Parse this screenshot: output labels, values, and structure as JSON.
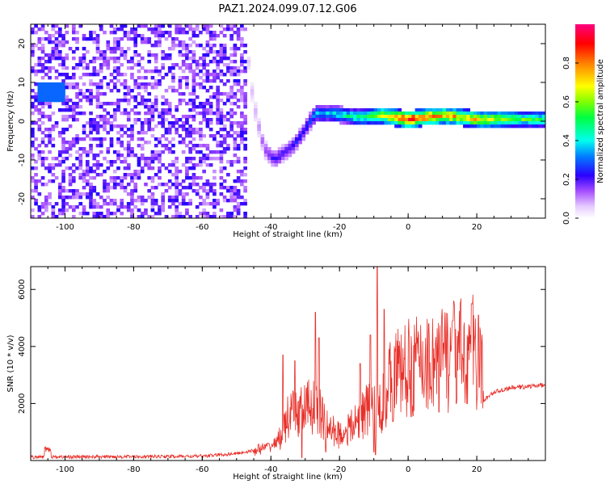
{
  "title": "PAZ1.2024.099.07.12.G06",
  "chart_data": [
    {
      "type": "heatmap",
      "xlabel": "Height of straight line (km)",
      "ylabel": "Frequency (Hz)",
      "xlim": [
        -110,
        40
      ],
      "ylim": [
        -25,
        25
      ],
      "xticks": [
        -100,
        -80,
        -60,
        -40,
        -20,
        0,
        20
      ],
      "xtick_labels": [
        "-100",
        "-80",
        "-60",
        "-40",
        "-20",
        "0",
        "20"
      ],
      "yticks": [
        -20,
        -10,
        0,
        10,
        20
      ],
      "ytick_labels": [
        "-20",
        "-10",
        "0",
        "10",
        "20"
      ],
      "colorbar": {
        "label": "Normalized spectral amplitude",
        "range": [
          0,
          1
        ],
        "ticks": [
          0.0,
          0.2,
          0.4,
          0.6,
          0.8
        ],
        "tick_labels": [
          "0.0",
          "0.2",
          "0.4",
          "0.6",
          "0.8"
        ]
      },
      "features": {
        "noise_region_x": [
          -110,
          -47
        ],
        "noise_amplitude": 0.15,
        "ridge": [
          {
            "x": -107,
            "y": 7,
            "amp": 0.3
          },
          {
            "x": -103,
            "y": 8,
            "amp": 0.35
          },
          {
            "x": -47,
            "y": 20,
            "amp": 0.05
          },
          {
            "x": -46,
            "y": 10,
            "amp": 0.08
          },
          {
            "x": -44,
            "y": 0,
            "amp": 0.1
          },
          {
            "x": -42,
            "y": -7,
            "amp": 0.15
          },
          {
            "x": -39,
            "y": -10,
            "amp": 0.25
          },
          {
            "x": -36,
            "y": -8,
            "amp": 0.2
          },
          {
            "x": -33,
            "y": -6,
            "amp": 0.25
          },
          {
            "x": -30,
            "y": -2,
            "amp": 0.25
          },
          {
            "x": -27,
            "y": 2,
            "amp": 0.35
          },
          {
            "x": -22,
            "y": 2,
            "amp": 0.4
          },
          {
            "x": -15,
            "y": 1,
            "amp": 0.5
          },
          {
            "x": -8,
            "y": 1.5,
            "amp": 0.65
          },
          {
            "x": 0,
            "y": 0.5,
            "amp": 0.95
          },
          {
            "x": 10,
            "y": 1.5,
            "amp": 0.8
          },
          {
            "x": 20,
            "y": 0.5,
            "amp": 0.75
          },
          {
            "x": 30,
            "y": 0.5,
            "amp": 0.6
          },
          {
            "x": 40,
            "y": 0.5,
            "amp": 0.5
          }
        ]
      }
    },
    {
      "type": "line",
      "xlabel": "Height of straight line (km)",
      "ylabel": "SNR (10 * v/v)",
      "xlim": [
        -110,
        40
      ],
      "ylim": [
        0,
        6800
      ],
      "xticks": [
        -100,
        -80,
        -60,
        -40,
        -20,
        0,
        20
      ],
      "xtick_labels": [
        "-100",
        "-80",
        "-60",
        "-40",
        "-20",
        "0",
        "20"
      ],
      "yticks": [
        2000,
        4000,
        6000
      ],
      "ytick_labels": [
        "2000",
        "4000",
        "6000"
      ],
      "color": "#e8302a",
      "profile": [
        {
          "x": -110,
          "y": 120
        },
        {
          "x": -60,
          "y": 150
        },
        {
          "x": -50,
          "y": 250
        },
        {
          "x": -45,
          "y": 350
        },
        {
          "x": -40,
          "y": 500
        },
        {
          "x": -37,
          "y": 800
        },
        {
          "x": -35,
          "y": 1500
        },
        {
          "x": -30,
          "y": 1800
        },
        {
          "x": -27,
          "y": 2000
        },
        {
          "x": -24,
          "y": 1200
        },
        {
          "x": -20,
          "y": 900
        },
        {
          "x": -16,
          "y": 1200
        },
        {
          "x": -12,
          "y": 1800
        },
        {
          "x": -8,
          "y": 1800
        },
        {
          "x": -6,
          "y": 2600
        },
        {
          "x": -3,
          "y": 3100
        },
        {
          "x": 0,
          "y": 3200
        },
        {
          "x": 5,
          "y": 3500
        },
        {
          "x": 10,
          "y": 3600
        },
        {
          "x": 15,
          "y": 3700
        },
        {
          "x": 21,
          "y": 3900
        },
        {
          "x": 22,
          "y": 2100
        },
        {
          "x": 25,
          "y": 2400
        },
        {
          "x": 30,
          "y": 2550
        },
        {
          "x": 40,
          "y": 2650
        }
      ],
      "peaks": [
        {
          "x": -36.5,
          "y": 3700
        },
        {
          "x": -33,
          "y": 3500
        },
        {
          "x": -27,
          "y": 5200
        },
        {
          "x": -26,
          "y": 4300
        },
        {
          "x": -14,
          "y": 3400
        },
        {
          "x": -11,
          "y": 4400
        },
        {
          "x": -9,
          "y": 6800
        },
        {
          "x": -7,
          "y": 5300
        },
        {
          "x": 6,
          "y": 4800
        },
        {
          "x": 13,
          "y": 4900
        },
        {
          "x": 18.5,
          "y": 5500
        },
        {
          "x": 20.5,
          "y": 5100
        }
      ],
      "dips": [
        {
          "x": -31,
          "y": 100
        },
        {
          "x": -24,
          "y": 300
        },
        {
          "x": -10,
          "y": 300
        },
        {
          "x": -9.5,
          "y": 200
        },
        {
          "x": 9,
          "y": 1700
        },
        {
          "x": 14,
          "y": 2000
        }
      ]
    }
  ]
}
